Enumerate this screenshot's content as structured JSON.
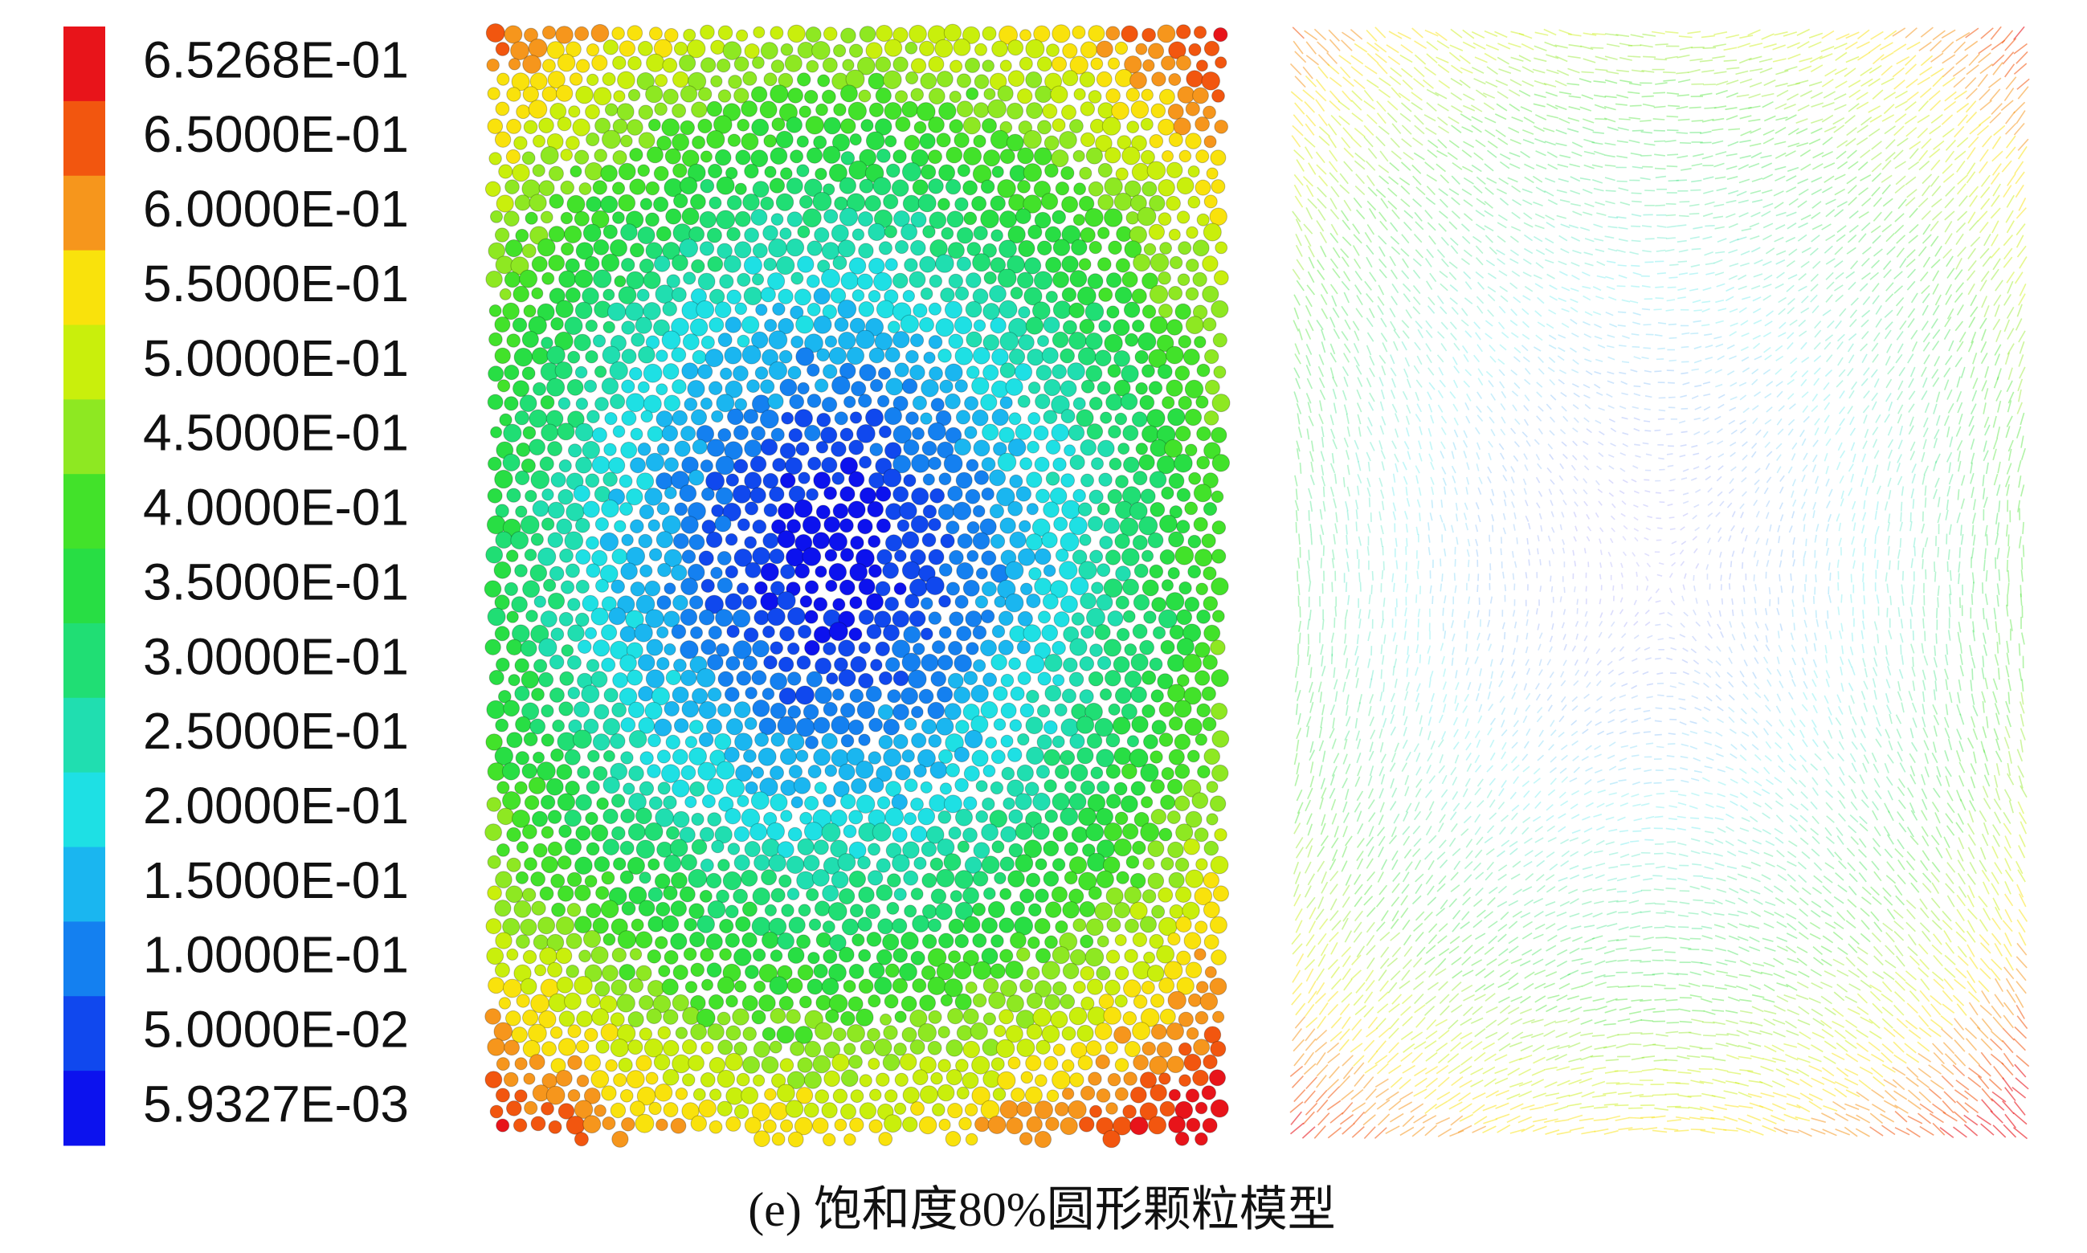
{
  "colorbar": {
    "labels": [
      "6.5268E-01",
      "6.5000E-01",
      "6.0000E-01",
      "5.5000E-01",
      "5.0000E-01",
      "4.5000E-01",
      "4.0000E-01",
      "3.5000E-01",
      "3.0000E-01",
      "2.5000E-01",
      "2.0000E-01",
      "1.5000E-01",
      "1.0000E-01",
      "5.0000E-02",
      "5.9327E-03"
    ],
    "colors": [
      "#e8141a",
      "#f2560f",
      "#f6961c",
      "#f9e20c",
      "#c9ef0c",
      "#8ee822",
      "#42e22a",
      "#28de44",
      "#20de74",
      "#20deb0",
      "#1ee0e4",
      "#1ab6f0",
      "#1480f0",
      "#1048ee",
      "#0c12ee"
    ]
  },
  "caption": "(e) 饱和度80%圆形颗粒模型"
}
